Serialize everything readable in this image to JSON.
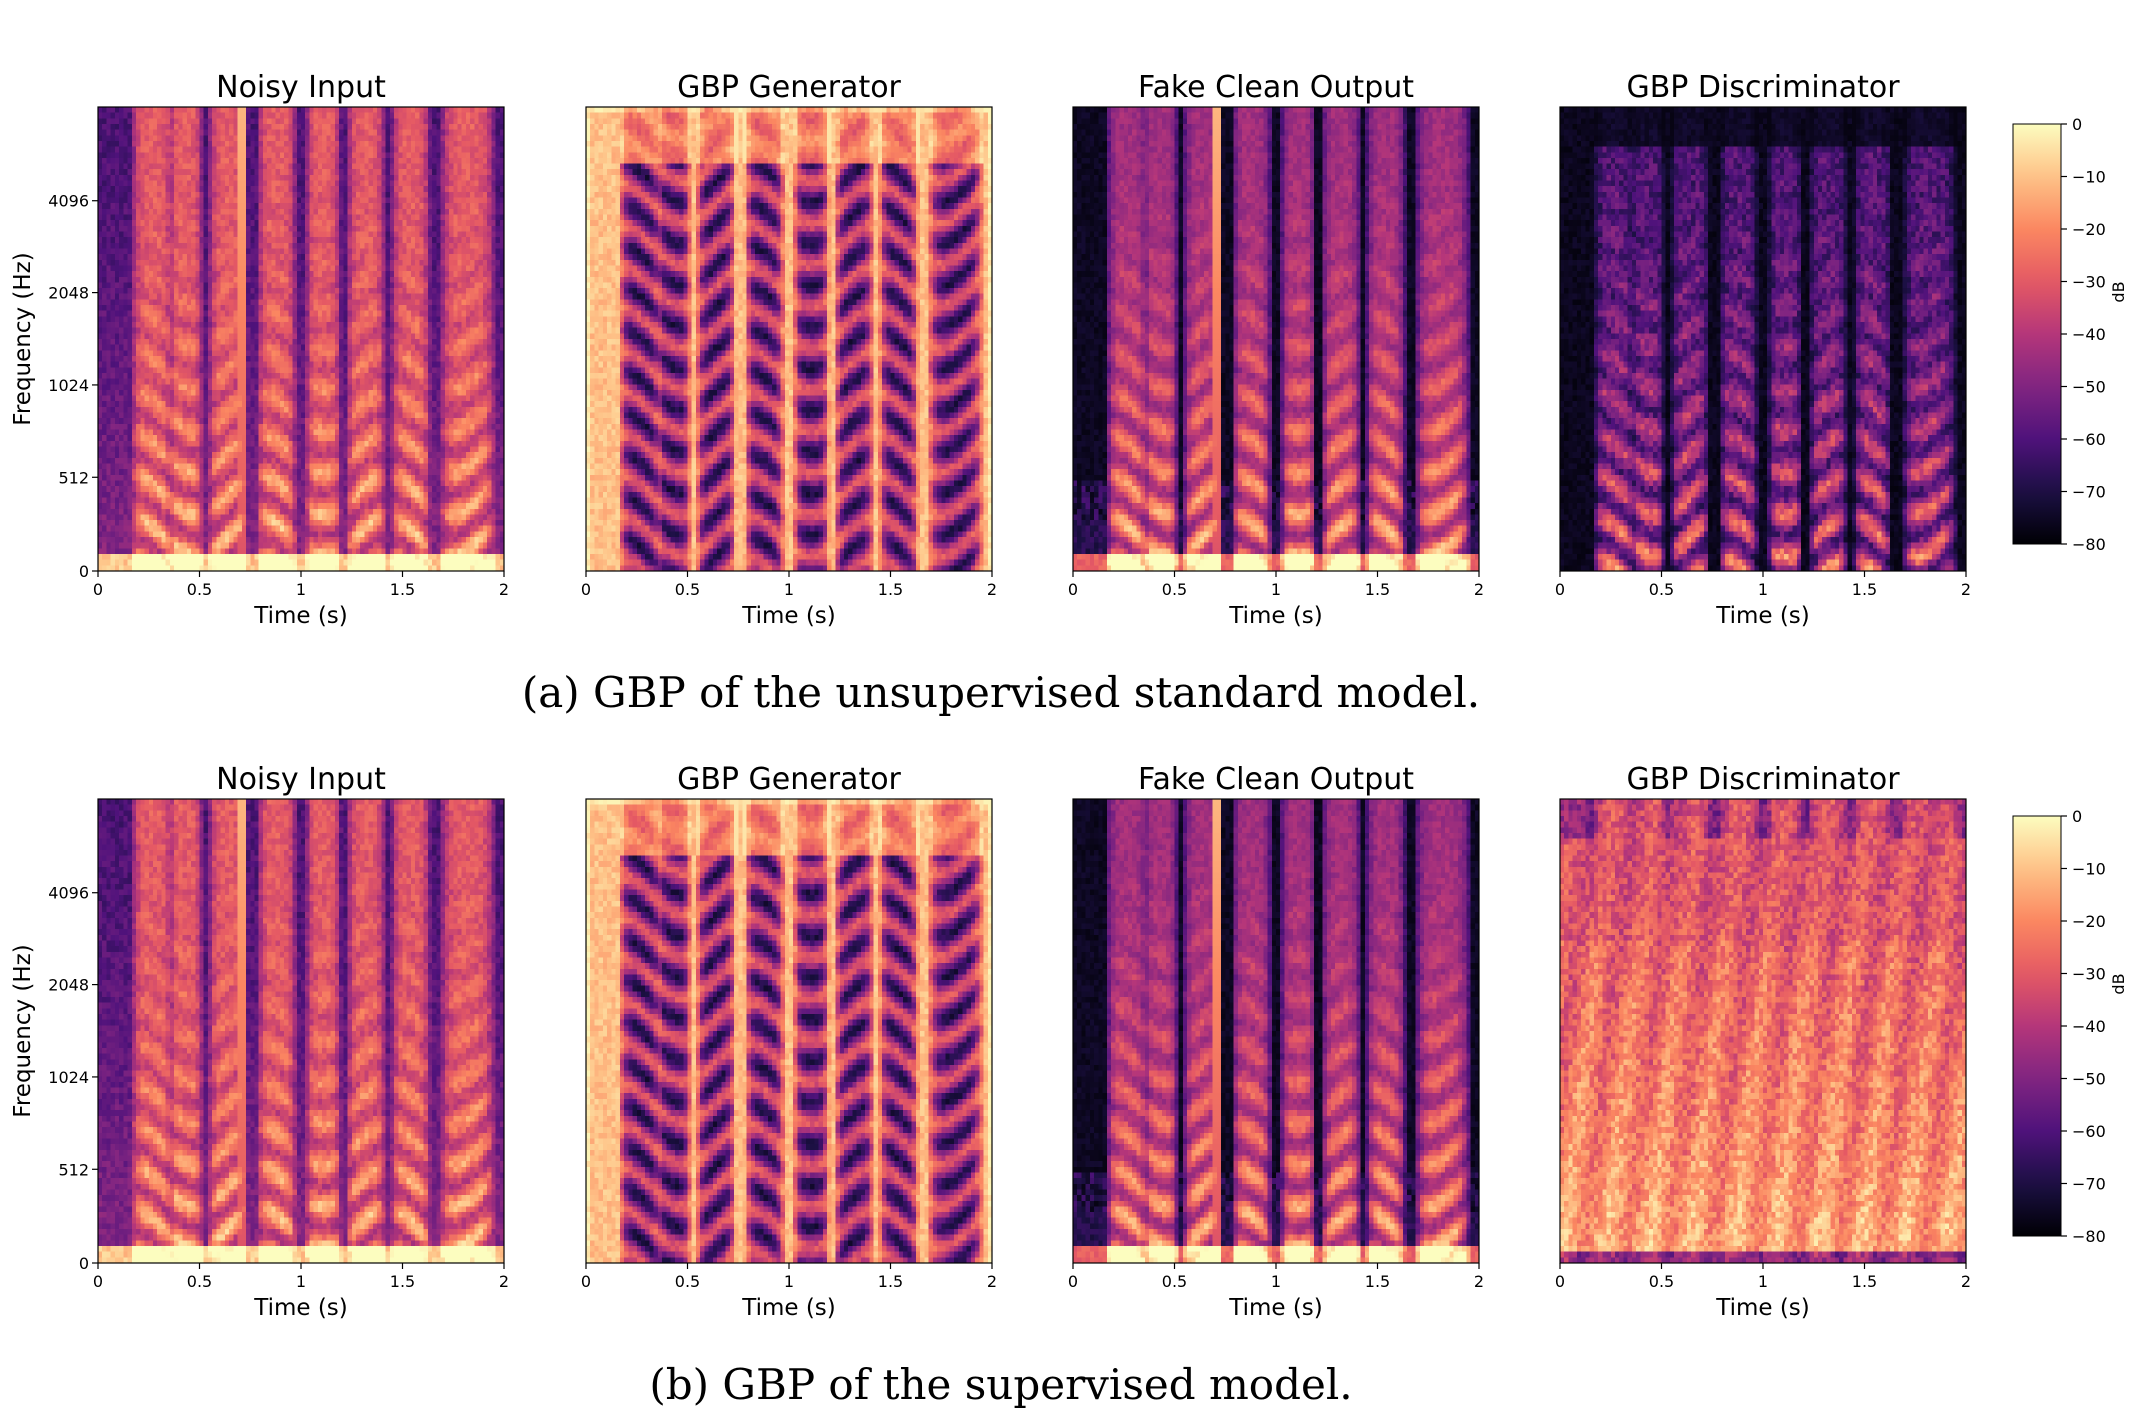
{
  "chart_data": [
    {
      "type": "heatmap",
      "caption": "(a)   GBP of the unsupervised standard model.",
      "panels": [
        {
          "title": "Noisy Input",
          "variant": "noisy"
        },
        {
          "title": "GBP Generator",
          "variant": "generator"
        },
        {
          "title": "Fake Clean Output",
          "variant": "clean"
        },
        {
          "title": "GBP Discriminator",
          "variant": "disc_sparse"
        }
      ],
      "xlabel": "Time (s)",
      "ylabel": "Frequency (Hz)",
      "x_ticks": [
        "0",
        "0.5",
        "1",
        "1.5",
        "2"
      ],
      "y_ticks": [
        "0",
        "512",
        "1024",
        "2048",
        "4096"
      ],
      "xlim": [
        0,
        2
      ],
      "colorbar": {
        "label": "dB",
        "ticks": [
          "0",
          "−10",
          "−20",
          "−30",
          "−40",
          "−50",
          "−60",
          "−70",
          "−80"
        ],
        "range": [
          -80,
          0
        ],
        "colormap": "magma"
      }
    },
    {
      "type": "heatmap",
      "caption": "(b)   GBP of the supervised model.",
      "panels": [
        {
          "title": "Noisy Input",
          "variant": "noisy"
        },
        {
          "title": "GBP Generator",
          "variant": "generator"
        },
        {
          "title": "Fake Clean Output",
          "variant": "clean"
        },
        {
          "title": "GBP Discriminator",
          "variant": "disc_dense"
        }
      ],
      "xlabel": "Time (s)",
      "ylabel": "Frequency (Hz)",
      "x_ticks": [
        "0",
        "0.5",
        "1",
        "1.5",
        "2"
      ],
      "y_ticks": [
        "0",
        "512",
        "1024",
        "2048",
        "4096"
      ],
      "xlim": [
        0,
        2
      ],
      "colorbar": {
        "label": "dB",
        "ticks": [
          "0",
          "−10",
          "−20",
          "−30",
          "−40",
          "−50",
          "−60",
          "−70",
          "−80"
        ],
        "range": [
          -80,
          0
        ],
        "colormap": "magma"
      }
    }
  ],
  "colors": {
    "magma_stops": [
      "#000004",
      "#1c1044",
      "#4f127b",
      "#812581",
      "#b5367a",
      "#e55964",
      "#fb8761",
      "#fec287",
      "#fcfdbf"
    ]
  }
}
